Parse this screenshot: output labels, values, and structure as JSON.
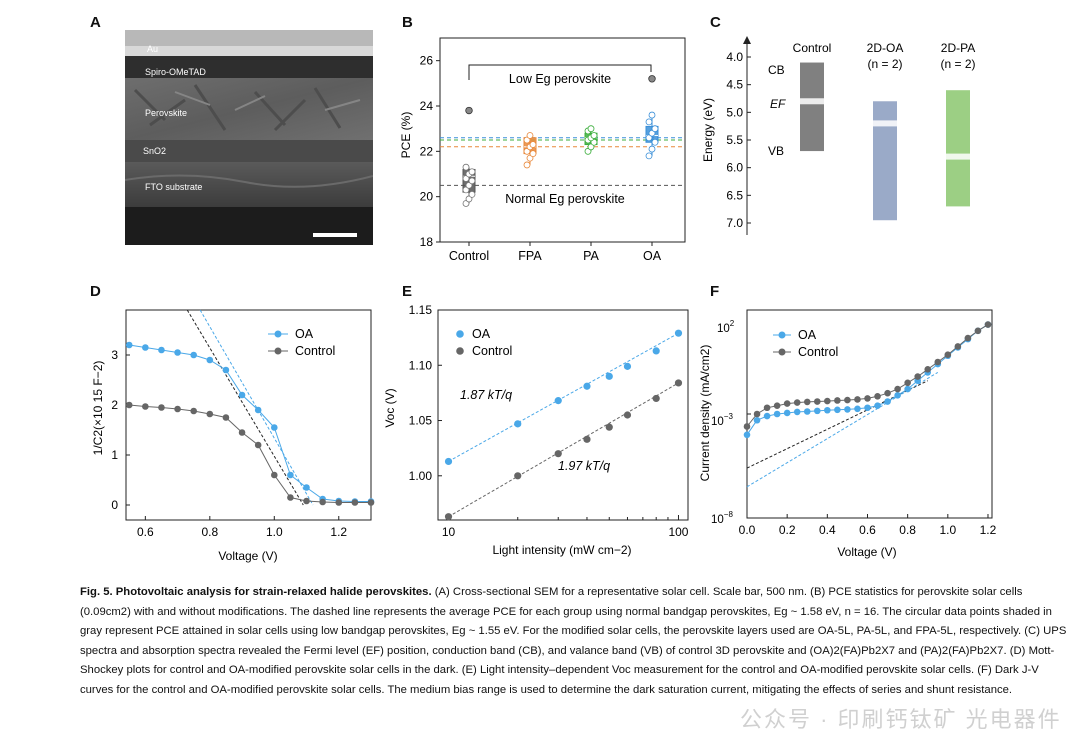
{
  "panels": {
    "A": {
      "letter": "A",
      "layers": [
        "Au",
        "Spiro-OMeTAD",
        "Perovskite",
        "SnO2",
        "FTO substrate"
      ]
    },
    "B": {
      "letter": "B",
      "ylabel": "PCE (%)",
      "yticks": [
        18,
        20,
        22,
        24,
        26
      ],
      "annot_low": "Low Eg perovskite",
      "annot_normal": "Normal Eg perovskite"
    },
    "C": {
      "letter": "C",
      "ylabel": "Energy (eV)",
      "yticks": [
        "4.0",
        "4.5",
        "5.0",
        "5.5",
        "6.0",
        "6.5",
        "7.0"
      ],
      "cb_label": "CB",
      "ef_label": "EF",
      "vb_label": "VB",
      "col_control": "Control",
      "col_oa": "2D-OA",
      "col_pa": "2D-PA",
      "col_n": "(n = 2)"
    },
    "D": {
      "letter": "D",
      "xlabel": "Voltage (V)",
      "ylabel": "1/C2(×10 15 F−2)",
      "xticks": [
        "0.6",
        "0.8",
        "1.0",
        "1.2"
      ],
      "yticks": [
        "0",
        "1",
        "2",
        "3"
      ],
      "legend": [
        "OA",
        "Control"
      ]
    },
    "E": {
      "letter": "E",
      "xlabel": "Light intensity (mW cm−2)",
      "ylabel": "Voc (V)",
      "xticks": [
        "10",
        "100"
      ],
      "yticks": [
        "1.00",
        "1.05",
        "1.10",
        "1.15"
      ],
      "legend": [
        "OA",
        "Control"
      ],
      "annot_oa": "1.87 kT/q",
      "annot_control": "1.97 kT/q"
    },
    "F": {
      "letter": "F",
      "xlabel": "Voltage (V)",
      "ylabel": "Current density (mA/cm2)",
      "xticks": [
        "0.0",
        "0.2",
        "0.4",
        "0.6",
        "0.8",
        "1.0",
        "1.2"
      ],
      "ytick_top": "10",
      "ytick_top_exp": "2",
      "ytick_mid": "10",
      "ytick_mid_exp": "−3",
      "ytick_bot": "10",
      "ytick_bot_exp": "−8",
      "legend": [
        "OA",
        "Control"
      ]
    }
  },
  "chart_data": [
    {
      "panel": "B",
      "type": "scatter",
      "categories": [
        "Control",
        "FPA",
        "PA",
        "OA"
      ],
      "series": [
        {
          "name": "Control",
          "box": [
            20.2,
            20.9,
            21.2
          ],
          "points": [
            19.7,
            19.9,
            20.1,
            20.3,
            20.5,
            20.7,
            20.8,
            21.0,
            21.1,
            21.3
          ],
          "low_eg_point": 23.8,
          "mean": 20.5,
          "color": "#555555"
        },
        {
          "name": "FPA",
          "box": [
            21.9,
            22.2,
            22.6
          ],
          "points": [
            21.4,
            21.7,
            21.9,
            22.0,
            22.2,
            22.3,
            22.5,
            22.7
          ],
          "mean": 22.2,
          "color": "#e8883a"
        },
        {
          "name": "PA",
          "box": [
            22.3,
            22.6,
            22.8
          ],
          "points": [
            22.0,
            22.2,
            22.4,
            22.5,
            22.6,
            22.7,
            22.9,
            23.0
          ],
          "mean": 22.5,
          "color": "#3cae3c"
        },
        {
          "name": "OA",
          "box": [
            22.4,
            22.7,
            23.1
          ],
          "points": [
            21.8,
            22.1,
            22.4,
            22.6,
            22.8,
            23.0,
            23.3,
            23.6
          ],
          "low_eg_point": 25.2,
          "mean": 22.6,
          "color": "#3a8fd8"
        }
      ],
      "ylim": [
        18,
        27
      ]
    },
    {
      "panel": "C",
      "type": "bar",
      "categories": [
        "Control",
        "2D-OA",
        "2D-PA"
      ],
      "cb": [
        4.1,
        4.8,
        4.6
      ],
      "vb": [
        5.7,
        6.95,
        6.7
      ],
      "ef": [
        4.8,
        5.2,
        5.8
      ],
      "ylim": [
        3.8,
        7.2
      ],
      "colors": [
        "#808080",
        "#9aaac8",
        "#9ccf84"
      ]
    },
    {
      "panel": "D",
      "type": "line",
      "series": [
        {
          "name": "OA",
          "x": [
            0.55,
            0.6,
            0.65,
            0.7,
            0.75,
            0.8,
            0.85,
            0.9,
            0.95,
            1.0,
            1.05,
            1.1,
            1.15,
            1.2,
            1.25,
            1.3
          ],
          "y": [
            3.2,
            3.15,
            3.1,
            3.05,
            3.0,
            2.9,
            2.7,
            2.2,
            1.9,
            1.55,
            0.6,
            0.35,
            0.12,
            0.08,
            0.07,
            0.07
          ],
          "color": "#4aa8e8"
        },
        {
          "name": "Control",
          "x": [
            0.55,
            0.6,
            0.65,
            0.7,
            0.75,
            0.8,
            0.85,
            0.9,
            0.95,
            1.0,
            1.05,
            1.1,
            1.15,
            1.2,
            1.25,
            1.3
          ],
          "y": [
            2.0,
            1.97,
            1.95,
            1.92,
            1.88,
            1.82,
            1.75,
            1.45,
            1.2,
            0.6,
            0.15,
            0.08,
            0.06,
            0.05,
            0.05,
            0.05
          ],
          "color": "#666666"
        }
      ],
      "xlim": [
        0.54,
        1.3
      ],
      "ylim": [
        -0.3,
        3.9
      ]
    },
    {
      "panel": "E",
      "type": "scatter",
      "series": [
        {
          "name": "OA",
          "x": [
            10,
            20,
            30,
            40,
            50,
            60,
            80,
            100
          ],
          "y": [
            1.013,
            1.047,
            1.068,
            1.081,
            1.09,
            1.099,
            1.113,
            1.129
          ],
          "color": "#4aa8e8"
        },
        {
          "name": "Control",
          "x": [
            10,
            20,
            30,
            40,
            50,
            60,
            80,
            100
          ],
          "y": [
            0.963,
            1.0,
            1.02,
            1.033,
            1.044,
            1.055,
            1.07,
            1.084
          ],
          "color": "#666666"
        }
      ],
      "xlim": [
        9,
        110
      ],
      "ylim": [
        0.96,
        1.15
      ],
      "xscale": "log"
    },
    {
      "panel": "F",
      "type": "line",
      "series": [
        {
          "name": "OA",
          "x": [
            0.0,
            0.05,
            0.1,
            0.15,
            0.2,
            0.25,
            0.3,
            0.35,
            0.4,
            0.45,
            0.5,
            0.55,
            0.6,
            0.65,
            0.7,
            0.75,
            0.8,
            0.85,
            0.9,
            0.95,
            1.0,
            1.05,
            1.1,
            1.15,
            1.2
          ],
          "log10_y": [
            -4.0,
            -3.3,
            -3.1,
            -3.0,
            -2.95,
            -2.9,
            -2.88,
            -2.85,
            -2.82,
            -2.8,
            -2.78,
            -2.75,
            -2.7,
            -2.6,
            -2.4,
            -2.1,
            -1.8,
            -1.4,
            -1.0,
            -0.6,
            -0.2,
            0.2,
            0.6,
            1.0,
            1.3
          ],
          "color": "#4aa8e8"
        },
        {
          "name": "Control",
          "x": [
            0.0,
            0.05,
            0.1,
            0.15,
            0.2,
            0.25,
            0.3,
            0.35,
            0.4,
            0.45,
            0.5,
            0.55,
            0.6,
            0.65,
            0.7,
            0.75,
            0.8,
            0.85,
            0.9,
            0.95,
            1.0,
            1.05,
            1.1,
            1.15,
            1.2
          ],
          "log10_y": [
            -3.6,
            -3.0,
            -2.7,
            -2.6,
            -2.5,
            -2.45,
            -2.42,
            -2.4,
            -2.38,
            -2.35,
            -2.33,
            -2.3,
            -2.25,
            -2.15,
            -2.0,
            -1.8,
            -1.5,
            -1.2,
            -0.85,
            -0.5,
            -0.15,
            0.25,
            0.65,
            1.0,
            1.3
          ],
          "color": "#666666"
        }
      ],
      "xlim": [
        0.0,
        1.22
      ],
      "ylim_log10": [
        -8,
        2
      ],
      "yscale": "log"
    }
  ],
  "caption": {
    "title": "Fig. 5. Photovoltaic analysis for strain-relaxed halide perovskites.",
    "body": " (A) Cross-sectional SEM for a representative solar cell. Scale bar, 500 nm. (B) PCE statistics for perovskite solar cells (0.09cm2) with and without modifications. The dashed line represents the average PCE for each group using normal bandgap perovskites, Eg ~ 1.58 eV, n = 16. The circular data points shaded in gray represent PCE attained in solar cells using low bandgap perovskites, Eg ~ 1.55 eV. For the modified solar cells, the perovskite layers used are OA-5L, PA-5L, and FPA-5L, respectively. (C) UPS spectra and absorption spectra revealed the Fermi level (EF) position, conduction band (CB), and valance band (VB) of control 3D perovskite and (OA)2(FA)Pb2X7 and (PA)2(FA)Pb2X7. (D) Mott-Shockey plots for control and OA-modified perovskite solar cells in the dark. (E) Light intensity–dependent Voc measurement for the control and OA-modified perovskite solar cells. (F) Dark J-V curves for the control and OA-modified perovskite solar cells. The medium bias range is used to determine the dark saturation current, mitigating the effects of series and shunt resistance."
  },
  "watermark": "公众号 · 印刷钙钛矿 光电器件"
}
